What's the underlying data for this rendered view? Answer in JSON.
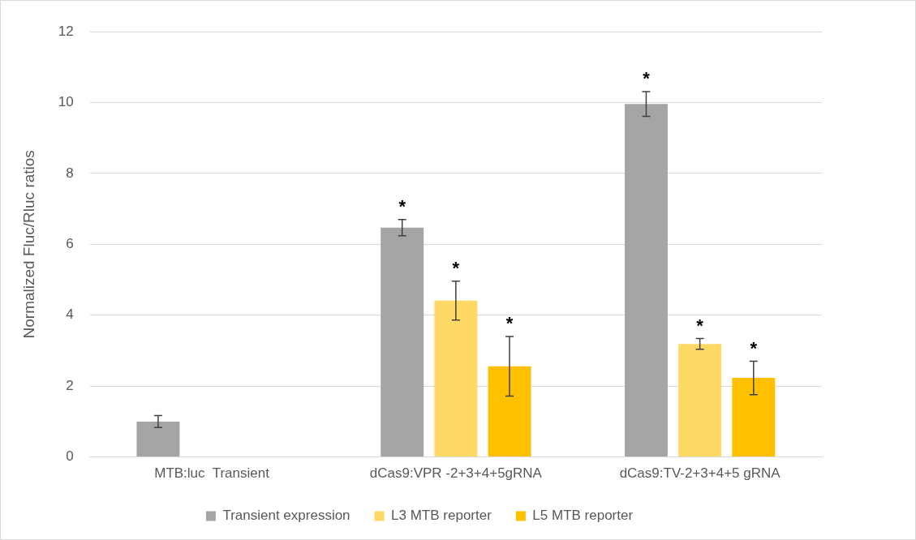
{
  "chart_data": {
    "type": "bar",
    "ylabel": "Normalized Fluc/Rluc ratios",
    "categories": [
      "MTB:luc  Transient",
      "dCas9:VPR -2+3+4+5gRNA",
      "dCas9:TV-2+3+4+5 gRNA"
    ],
    "series": [
      {
        "name": "Transient expression",
        "color": "#a5a5a5",
        "values": [
          1.0,
          6.47,
          9.96
        ],
        "errors": [
          0.17,
          0.23,
          0.35
        ],
        "value_labels": [
          null,
          "*",
          "*"
        ]
      },
      {
        "name": "L3 MTB reporter",
        "color": "#ffd966",
        "values": [
          null,
          4.41,
          3.19
        ],
        "errors": [
          null,
          0.55,
          0.15
        ],
        "value_labels": [
          null,
          "*",
          "*"
        ]
      },
      {
        "name": "L5 MTB reporter",
        "color": "#ffc000",
        "values": [
          null,
          2.56,
          2.23
        ],
        "errors": [
          null,
          0.84,
          0.47
        ],
        "value_labels": [
          null,
          "*",
          "*"
        ]
      }
    ],
    "ylim": [
      0,
      12
    ],
    "yticks": [
      0,
      2,
      4,
      6,
      8,
      10,
      12
    ],
    "grid": "y",
    "legend": "bottom"
  }
}
